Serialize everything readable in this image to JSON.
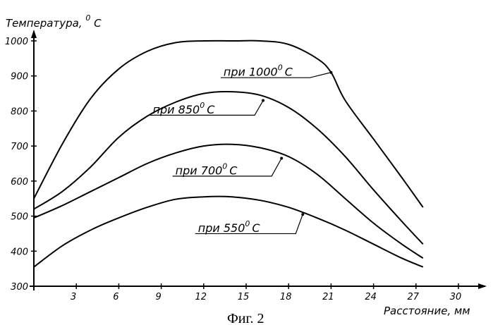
{
  "chart_data": {
    "type": "line",
    "ylabel_main": "Температура,",
    "ylabel_unit_sup": "0",
    "ylabel_unit": "С",
    "xlabel": "Расстояние, мм",
    "caption": "Фиг. 2",
    "xlim": [
      0,
      30
    ],
    "ylim": [
      300,
      1000
    ],
    "x_ticks": [
      "3",
      "6",
      "9",
      "12",
      "15",
      "18",
      "21",
      "24",
      "27",
      "30"
    ],
    "y_ticks": [
      "300",
      "400",
      "500",
      "600",
      "700",
      "800",
      "900",
      "1000"
    ],
    "grid": false,
    "series": [
      {
        "name": "при 1000 С",
        "label_prefix": "при 1000",
        "label_sup": "0",
        "label_suffix": "С",
        "x": [
          0,
          2,
          4,
          6,
          8,
          10,
          12,
          14,
          16,
          18,
          20,
          21,
          22,
          24,
          26,
          27.5
        ],
        "y": [
          550,
          705,
          835,
          920,
          970,
          995,
          1000,
          1000,
          1000,
          990,
          950,
          910,
          830,
          720,
          610,
          525
        ]
      },
      {
        "name": "при 850 С",
        "label_prefix": "при 850",
        "label_sup": "0",
        "label_suffix": "С",
        "x": [
          0,
          2,
          4,
          6,
          8,
          10,
          12,
          14,
          16,
          18,
          20,
          22,
          24,
          26,
          27.5
        ],
        "y": [
          520,
          570,
          640,
          725,
          785,
          825,
          850,
          855,
          845,
          810,
          750,
          670,
          575,
          485,
          420
        ]
      },
      {
        "name": "при 700 С",
        "label_prefix": "при 700",
        "label_sup": "0",
        "label_suffix": "С",
        "x": [
          0,
          2,
          4,
          6,
          8,
          10,
          12,
          14,
          16,
          18,
          20,
          22,
          24,
          26,
          27.5
        ],
        "y": [
          495,
          530,
          570,
          610,
          650,
          680,
          700,
          705,
          695,
          670,
          620,
          550,
          480,
          420,
          380
        ]
      },
      {
        "name": "при 550 С",
        "label_prefix": "при 550",
        "label_sup": "0",
        "label_suffix": "С",
        "x": [
          0,
          2,
          4,
          6,
          8,
          10,
          12,
          14,
          16,
          18,
          20,
          22,
          24,
          26,
          27.5
        ],
        "y": [
          355,
          415,
          460,
          495,
          525,
          548,
          555,
          555,
          545,
          525,
          495,
          460,
          420,
          380,
          355
        ]
      }
    ]
  }
}
